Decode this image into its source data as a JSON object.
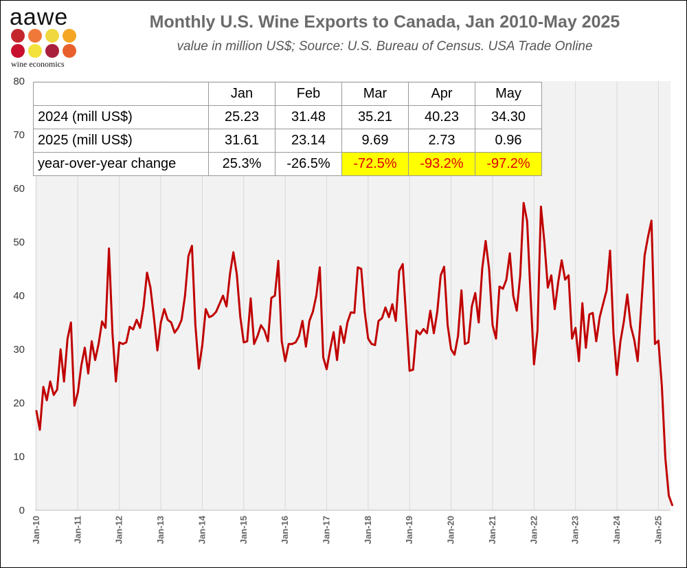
{
  "logo": {
    "text": "aawe",
    "subtext": "wine economics",
    "dot_colors": [
      "#c4262e",
      "#f0793a",
      "#f0d840",
      "#f5a623",
      "#c8102e",
      "#f3e23b",
      "#a8203c",
      "#e8602c"
    ]
  },
  "title": "Monthly U.S. Wine Exports to Canada, Jan 2010-May 2025",
  "subtitle": "value in million US$; Source: U.S. Bureau of Census. USA Trade Online",
  "table": {
    "columns": [
      "Jan",
      "Feb",
      "Mar",
      "Apr",
      "May"
    ],
    "rows": [
      {
        "label": "2024 (mill US$)",
        "values": [
          "25.23",
          "31.48",
          "35.21",
          "40.23",
          "34.30"
        ]
      },
      {
        "label": "2025 (mill US$)",
        "values": [
          "31.61",
          "23.14",
          "9.69",
          "2.73",
          "0.96"
        ]
      },
      {
        "label": "year-over-year change",
        "values": [
          "25.3%",
          "-26.5%",
          "-72.5%",
          "-93.2%",
          "-97.2%"
        ],
        "highlight": [
          false,
          false,
          true,
          true,
          true
        ]
      }
    ],
    "highlight_color": "#ffff00",
    "highlight_text_color": "#e00000"
  },
  "chart_data": {
    "type": "line",
    "title": "Monthly U.S. Wine Exports to Canada, Jan 2010-May 2025",
    "subtitle": "value in million US$; Source: U.S. Bureau of Census. USA Trade Online",
    "xlabel": "",
    "ylabel": "",
    "ylim": [
      0,
      80
    ],
    "yticks": [
      0,
      10,
      20,
      30,
      40,
      50,
      60,
      70,
      80
    ],
    "x_tick_labels": [
      "Jan-10",
      "Jan-11",
      "Jan-12",
      "Jan-13",
      "Jan-14",
      "Jan-15",
      "Jan-16",
      "Jan-17",
      "Jan-18",
      "Jan-19",
      "Jan-20",
      "Jan-21",
      "Jan-22",
      "Jan-23",
      "Jan-24",
      "Jan-25"
    ],
    "x_start": "2010-01",
    "x_end": "2025-05",
    "grid": "vertical",
    "line_color": "#c00000",
    "series": [
      {
        "name": "",
        "values": [
          18.5,
          15.0,
          23.0,
          20.5,
          24.0,
          21.5,
          22.5,
          30.0,
          24.0,
          32.0,
          35.0,
          19.5,
          22.0,
          27.0,
          30.3,
          25.5,
          31.5,
          28.0,
          31.0,
          35.2,
          34.0,
          48.8,
          33.0,
          24.0,
          31.3,
          31.0,
          31.3,
          34.2,
          33.7,
          35.5,
          34.0,
          37.9,
          44.3,
          41.5,
          36.0,
          29.8,
          35.0,
          37.5,
          35.5,
          35.0,
          33.1,
          34.0,
          35.5,
          40.0,
          47.4,
          49.3,
          34.5,
          26.4,
          30.7,
          37.5,
          36.0,
          36.3,
          37.0,
          38.5,
          40.0,
          38.0,
          44.0,
          48.1,
          44.0,
          36.0,
          31.3,
          31.5,
          39.5,
          31.0,
          32.5,
          34.5,
          33.5,
          31.5,
          39.6,
          40.0,
          46.5,
          31.5,
          27.8,
          31.0,
          31.0,
          31.3,
          32.5,
          35.3,
          30.5,
          35.3,
          37.0,
          40.0,
          45.3,
          28.5,
          26.3,
          30.0,
          33.2,
          28.0,
          34.3,
          31.2,
          35.0,
          36.9,
          36.8,
          45.3,
          45.0,
          37.0,
          32.0,
          31.0,
          30.8,
          35.3,
          35.8,
          37.8,
          36.0,
          38.4,
          35.3,
          44.6,
          45.9,
          36.0,
          26.0,
          26.2,
          33.5,
          32.8,
          33.8,
          33.0,
          37.2,
          33.0,
          37.0,
          43.8,
          45.4,
          34.5,
          30.0,
          29.0,
          32.5,
          41.0,
          31.0,
          31.3,
          38.0,
          40.5,
          35.0,
          45.0,
          50.2,
          45.0,
          34.5,
          32.0,
          41.7,
          41.3,
          43.0,
          47.9,
          40.0,
          37.2,
          43.7,
          57.3,
          53.9,
          40.0,
          27.2,
          33.5,
          56.6,
          50.0,
          41.5,
          43.8,
          37.5,
          42.5,
          46.6,
          43.0,
          43.8,
          32.0,
          34.0,
          27.8,
          38.6,
          30.3,
          36.5,
          36.8,
          31.5,
          36.0,
          38.5,
          41.0,
          48.4,
          33.0,
          25.23,
          31.48,
          35.21,
          40.23,
          34.3,
          31.8,
          27.8,
          37.8,
          47.5,
          51.0,
          54.0,
          31.0,
          31.61,
          23.14,
          9.69,
          2.73,
          0.96
        ]
      }
    ]
  }
}
